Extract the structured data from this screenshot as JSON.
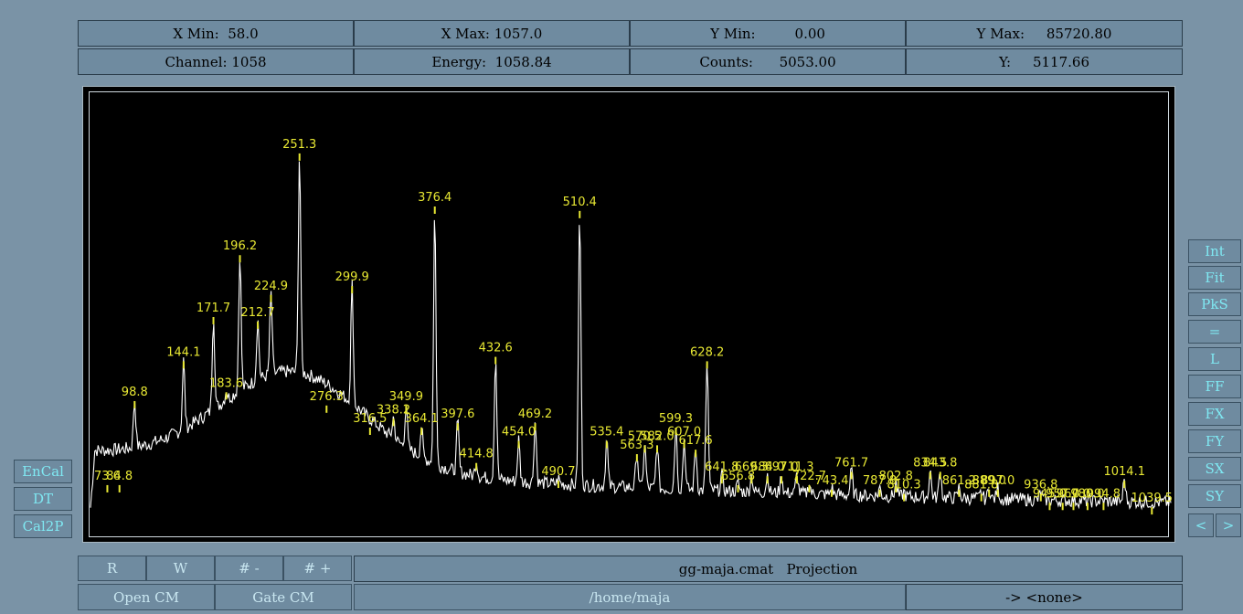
{
  "header": {
    "xmin_label": "X Min:",
    "xmin_value": "58.0",
    "xmax_label": "X Max:",
    "xmax_value": "1057.0",
    "ymin_label": "Y Min:",
    "ymin_value": "0.00",
    "ymax_label": "Y Max:",
    "ymax_value": "85720.80",
    "channel_label": "Channel:",
    "channel_value": "1058",
    "energy_label": "Energy:",
    "energy_value": "1058.84",
    "counts_label": "Counts:",
    "counts_value": "5053.00",
    "y_label": "Y:",
    "y_value": "5117.66"
  },
  "left_buttons": [
    "EnCal",
    "DT",
    "Cal2P"
  ],
  "right_buttons": [
    "Int",
    "Fit",
    "PkS",
    "=",
    "L",
    "FF",
    "FX",
    "FY",
    "SX",
    "SY"
  ],
  "nav": {
    "prev": "<",
    "next": ">"
  },
  "bottom": {
    "r": "R",
    "w": "W",
    "minus": "# -",
    "plus": "# +",
    "open_cm": "Open CM",
    "gate_cm": "Gate CM",
    "file_title": "gg-maja.cmat   Projection",
    "path": "/home/maja",
    "target": "-> <none>"
  },
  "colors": {
    "spectrum": "#ffffff",
    "peak_label": "#e8e833",
    "background": "#7a93a6",
    "plot_bg": "#000000"
  },
  "chart_data": {
    "type": "line",
    "xlim": [
      58.0,
      1057.0
    ],
    "ylim": [
      0,
      85720.8
    ],
    "peaks": [
      {
        "x": 73.6,
        "label": "73.6",
        "h": 0.12
      },
      {
        "x": 84.8,
        "label": "84.8",
        "h": 0.12
      },
      {
        "x": 98.8,
        "label": "98.8",
        "h": 0.31
      },
      {
        "x": 144.1,
        "label": "144.1",
        "h": 0.4
      },
      {
        "x": 171.7,
        "label": "171.7",
        "h": 0.5
      },
      {
        "x": 183.6,
        "label": "183.6",
        "h": 0.33
      },
      {
        "x": 196.2,
        "label": "196.2",
        "h": 0.64
      },
      {
        "x": 212.7,
        "label": "212.7",
        "h": 0.49
      },
      {
        "x": 224.9,
        "label": "224.9",
        "h": 0.55
      },
      {
        "x": 251.3,
        "label": "251.3",
        "h": 0.87
      },
      {
        "x": 276.3,
        "label": "276.3",
        "h": 0.3
      },
      {
        "x": 299.9,
        "label": "299.9",
        "h": 0.57
      },
      {
        "x": 316.5,
        "label": "316.5",
        "h": 0.25
      },
      {
        "x": 338.2,
        "label": "338.2",
        "h": 0.27
      },
      {
        "x": 349.9,
        "label": "349.9",
        "h": 0.3
      },
      {
        "x": 364.1,
        "label": "364.1",
        "h": 0.25
      },
      {
        "x": 376.4,
        "label": "376.4",
        "h": 0.75
      },
      {
        "x": 397.6,
        "label": "397.6",
        "h": 0.26
      },
      {
        "x": 414.8,
        "label": "414.8",
        "h": 0.17
      },
      {
        "x": 432.6,
        "label": "432.6",
        "h": 0.41
      },
      {
        "x": 454.0,
        "label": "454.0",
        "h": 0.22
      },
      {
        "x": 469.2,
        "label": "469.2",
        "h": 0.26
      },
      {
        "x": 490.7,
        "label": "490.7",
        "h": 0.13
      },
      {
        "x": 510.4,
        "label": "510.4",
        "h": 0.74
      },
      {
        "x": 535.4,
        "label": "535.4",
        "h": 0.22
      },
      {
        "x": 563.3,
        "label": "563.3",
        "h": 0.19
      },
      {
        "x": 570.5,
        "label": "570.5",
        "h": 0.21
      },
      {
        "x": 582.0,
        "label": "582.0",
        "h": 0.21
      },
      {
        "x": 599.3,
        "label": "599.3",
        "h": 0.25
      },
      {
        "x": 607.0,
        "label": "607.0",
        "h": 0.22
      },
      {
        "x": 617.6,
        "label": "617.6",
        "h": 0.2
      },
      {
        "x": 628.2,
        "label": "628.2",
        "h": 0.4
      },
      {
        "x": 641.8,
        "label": "641.8",
        "h": 0.14
      },
      {
        "x": 656.8,
        "label": "656.8",
        "h": 0.12
      },
      {
        "x": 669.3,
        "label": "669.3",
        "h": 0.14
      },
      {
        "x": 684.0,
        "label": "684.0",
        "h": 0.14
      },
      {
        "x": 697.0,
        "label": "697.0",
        "h": 0.14
      },
      {
        "x": 711.3,
        "label": "711.3",
        "h": 0.14
      },
      {
        "x": 722.7,
        "label": "722.7",
        "h": 0.12
      },
      {
        "x": 743.4,
        "label": "743.4",
        "h": 0.11
      },
      {
        "x": 761.7,
        "label": "761.7",
        "h": 0.15
      },
      {
        "x": 787.8,
        "label": "787.8",
        "h": 0.11
      },
      {
        "x": 802.8,
        "label": "802.8",
        "h": 0.12
      },
      {
        "x": 810.3,
        "label": "810.3",
        "h": 0.1
      },
      {
        "x": 834.5,
        "label": "834.5",
        "h": 0.15
      },
      {
        "x": 843.8,
        "label": "843.8",
        "h": 0.15
      },
      {
        "x": 861.2,
        "label": "861.2",
        "h": 0.11
      },
      {
        "x": 881.8,
        "label": "881.8",
        "h": 0.1
      },
      {
        "x": 889.0,
        "label": "889.0",
        "h": 0.11
      },
      {
        "x": 897.0,
        "label": "897.0",
        "h": 0.11
      },
      {
        "x": 936.8,
        "label": "936.8",
        "h": 0.1
      },
      {
        "x": 945.0,
        "label": "945.0",
        "h": 0.08
      },
      {
        "x": 957.0,
        "label": "957.0",
        "h": 0.08
      },
      {
        "x": 967.0,
        "label": "967.0",
        "h": 0.08
      },
      {
        "x": 980.0,
        "label": "980.0",
        "h": 0.08
      },
      {
        "x": 994.8,
        "label": "994.8",
        "h": 0.08
      },
      {
        "x": 1014.1,
        "label": "1014.1",
        "h": 0.13
      },
      {
        "x": 1039.5,
        "label": "1039.5",
        "h": 0.07
      }
    ]
  }
}
